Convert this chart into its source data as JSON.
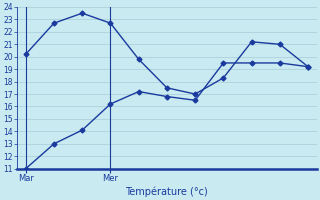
{
  "line1_y": [
    20.2,
    22.7,
    23.5,
    22.7,
    19.8,
    17.5,
    17.0,
    18.3,
    21.2,
    21.0,
    19.2
  ],
  "line2_y": [
    11.0,
    13.0,
    14.1,
    16.2,
    17.2,
    16.8,
    16.5,
    19.5,
    19.5,
    19.5,
    19.2
  ],
  "x_values": [
    0,
    1,
    2,
    3,
    4,
    5,
    6,
    7,
    8,
    9,
    10
  ],
  "vline_x": [
    0,
    3
  ],
  "xtick_positions": [
    0,
    3
  ],
  "xtick_labels": [
    "Mar",
    "Mer"
  ],
  "ylim": [
    11,
    24
  ],
  "ytick_min": 11,
  "ytick_max": 24,
  "xlabel": "Température (°c)",
  "line_color": "#1a3a9e",
  "bg_color": "#c8eaf0",
  "grid_color": "#a8ccd8",
  "axis_color": "#1a3a9e",
  "marker": "D",
  "marker_size": 2.5,
  "line_width": 1.0,
  "xlabel_fontsize": 7,
  "ytick_fontsize": 5.5,
  "xtick_fontsize": 6.0
}
